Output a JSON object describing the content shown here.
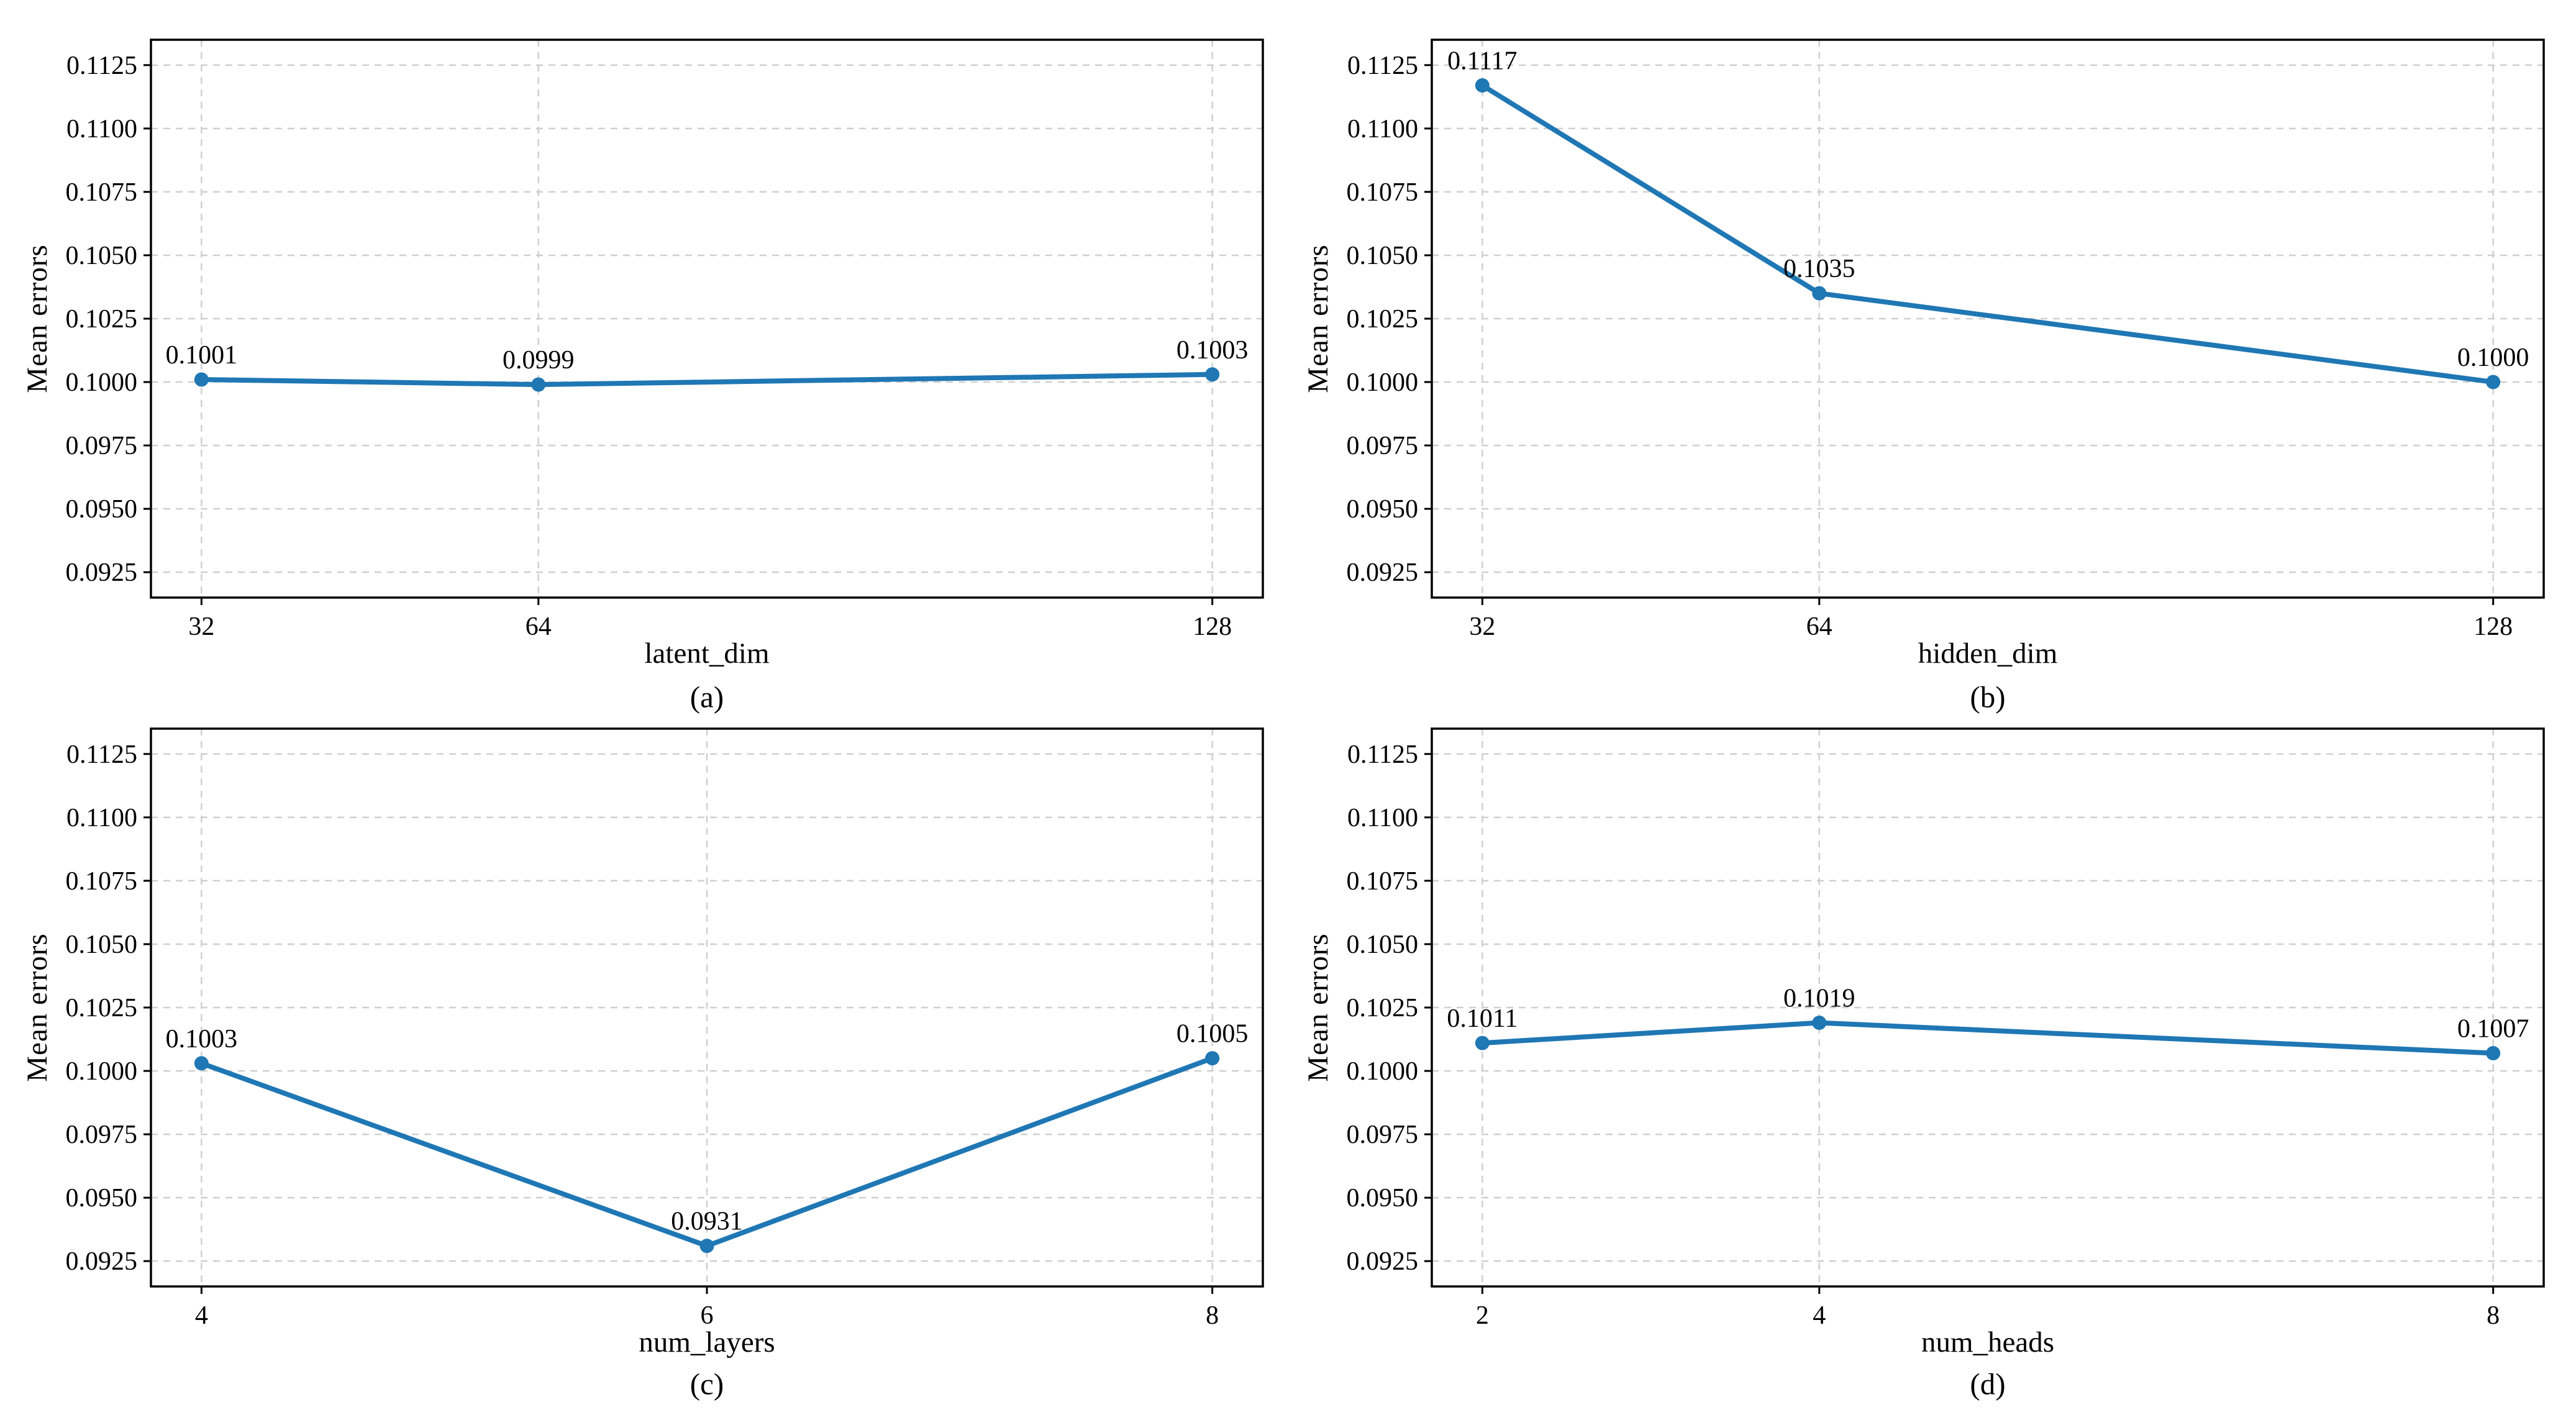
{
  "style": {
    "accent_color": "#1f77b4",
    "grid_color": "#cfcfcf",
    "spine_color": "#000000",
    "text_color": "#000000",
    "background": "#ffffff"
  },
  "chart_data": [
    {
      "type": "line",
      "panel": "(a)",
      "xlabel": "latent_dim",
      "ylabel": "Mean errors",
      "x": [
        32,
        64,
        128
      ],
      "x_tick_labels": [
        "32",
        "64",
        "128"
      ],
      "values": [
        0.1001,
        0.0999,
        0.1003
      ],
      "point_labels": [
        "0.1001",
        "0.0999",
        "0.1003"
      ],
      "ylim": [
        0.0915,
        0.1135
      ],
      "y_ticks": [
        0.0925,
        0.095,
        0.0975,
        0.1,
        0.1025,
        0.105,
        0.1075,
        0.11,
        0.1125
      ],
      "y_tick_labels": [
        "0.0925",
        "0.0950",
        "0.0975",
        "0.1000",
        "0.1025",
        "0.1050",
        "0.1075",
        "0.1100",
        "0.1125"
      ],
      "x_margin_frac": 0.05,
      "grid": true,
      "legend": null
    },
    {
      "type": "line",
      "panel": "(b)",
      "xlabel": "hidden_dim",
      "ylabel": "Mean errors",
      "x": [
        32,
        64,
        128
      ],
      "x_tick_labels": [
        "32",
        "64",
        "128"
      ],
      "values": [
        0.1117,
        0.1035,
        0.1
      ],
      "point_labels": [
        "0.1117",
        "0.1035",
        "0.1000"
      ],
      "ylim": [
        0.0915,
        0.1135
      ],
      "y_ticks": [
        0.0925,
        0.095,
        0.0975,
        0.1,
        0.1025,
        0.105,
        0.1075,
        0.11,
        0.1125
      ],
      "y_tick_labels": [
        "0.0925",
        "0.0950",
        "0.0975",
        "0.1000",
        "0.1025",
        "0.1050",
        "0.1075",
        "0.1100",
        "0.1125"
      ],
      "x_margin_frac": 0.05,
      "grid": true,
      "legend": null
    },
    {
      "type": "line",
      "panel": "(c)",
      "xlabel": "num_layers",
      "ylabel": "Mean errors",
      "x": [
        4,
        6,
        8
      ],
      "x_tick_labels": [
        "4",
        "6",
        "8"
      ],
      "values": [
        0.1003,
        0.0931,
        0.1005
      ],
      "point_labels": [
        "0.1003",
        "0.0931",
        "0.1005"
      ],
      "ylim": [
        0.0915,
        0.1135
      ],
      "y_ticks": [
        0.0925,
        0.095,
        0.0975,
        0.1,
        0.1025,
        0.105,
        0.1075,
        0.11,
        0.1125
      ],
      "y_tick_labels": [
        "0.0925",
        "0.0950",
        "0.0975",
        "0.1000",
        "0.1025",
        "0.1050",
        "0.1075",
        "0.1100",
        "0.1125"
      ],
      "x_margin_frac": 0.05,
      "grid": true,
      "legend": null
    },
    {
      "type": "line",
      "panel": "(d)",
      "xlabel": "num_heads",
      "ylabel": "Mean errors",
      "x": [
        2,
        4,
        8
      ],
      "x_tick_labels": [
        "2",
        "4",
        "8"
      ],
      "values": [
        0.1011,
        0.1019,
        0.1007
      ],
      "point_labels": [
        "0.1011",
        "0.1019",
        "0.1007"
      ],
      "ylim": [
        0.0915,
        0.1135
      ],
      "y_ticks": [
        0.0925,
        0.095,
        0.0975,
        0.1,
        0.1025,
        0.105,
        0.1075,
        0.11,
        0.1125
      ],
      "y_tick_labels": [
        "0.0925",
        "0.0950",
        "0.0975",
        "0.1000",
        "0.1025",
        "0.1050",
        "0.1075",
        "0.1100",
        "0.1125"
      ],
      "x_margin_frac": 0.05,
      "grid": true,
      "legend": null
    }
  ]
}
